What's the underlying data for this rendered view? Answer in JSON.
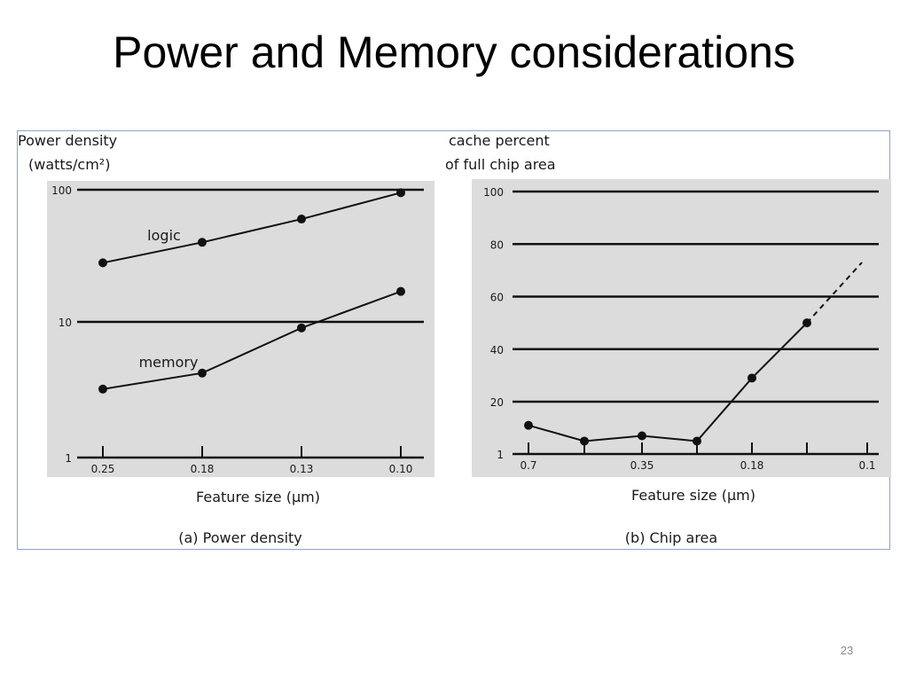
{
  "slide": {
    "title": "Power and Memory considerations",
    "page_number": "23"
  },
  "colors": {
    "panel_background": "#dcdcdc",
    "line": "#111111",
    "frame_border": "#8ea4c8"
  },
  "chart_data": [
    {
      "type": "line",
      "caption": "(a) Power density",
      "ylabel_lines": [
        "Power density",
        "(watts/cm²)"
      ],
      "xlabel": "Feature size (µm)",
      "y_scale": "log",
      "ylim": [
        1,
        100
      ],
      "y_ticks": [
        "1",
        "10",
        "100"
      ],
      "x_ticks": [
        "0.25",
        "0.18",
        "0.13",
        "0.10"
      ],
      "gridlines_at": [
        10,
        100
      ],
      "series": [
        {
          "name": "logic",
          "values": [
            28,
            40,
            60,
            95
          ]
        },
        {
          "name": "memory",
          "values": [
            3.1,
            4.1,
            9,
            17
          ]
        }
      ]
    },
    {
      "type": "line",
      "caption": "(b) Chip area",
      "ylabel_lines": [
        "cache percent",
        "of full chip area"
      ],
      "xlabel": "Feature size (µm)",
      "ylim": [
        1,
        100
      ],
      "y_ticks": [
        "1",
        "20",
        "40",
        "60",
        "80",
        "100"
      ],
      "x_ticks": [
        "0.7",
        "",
        "0.35",
        "",
        "0.18",
        "",
        "0.1"
      ],
      "gridlines_at": [
        20,
        40,
        60,
        80,
        100
      ],
      "series": [
        {
          "values": [
            11,
            5,
            7,
            5,
            29,
            50,
            null
          ]
        }
      ],
      "projection": {
        "from_index": 5,
        "from_value": 50,
        "to_position": 6,
        "to_value": 73,
        "style": "dashed"
      }
    }
  ]
}
